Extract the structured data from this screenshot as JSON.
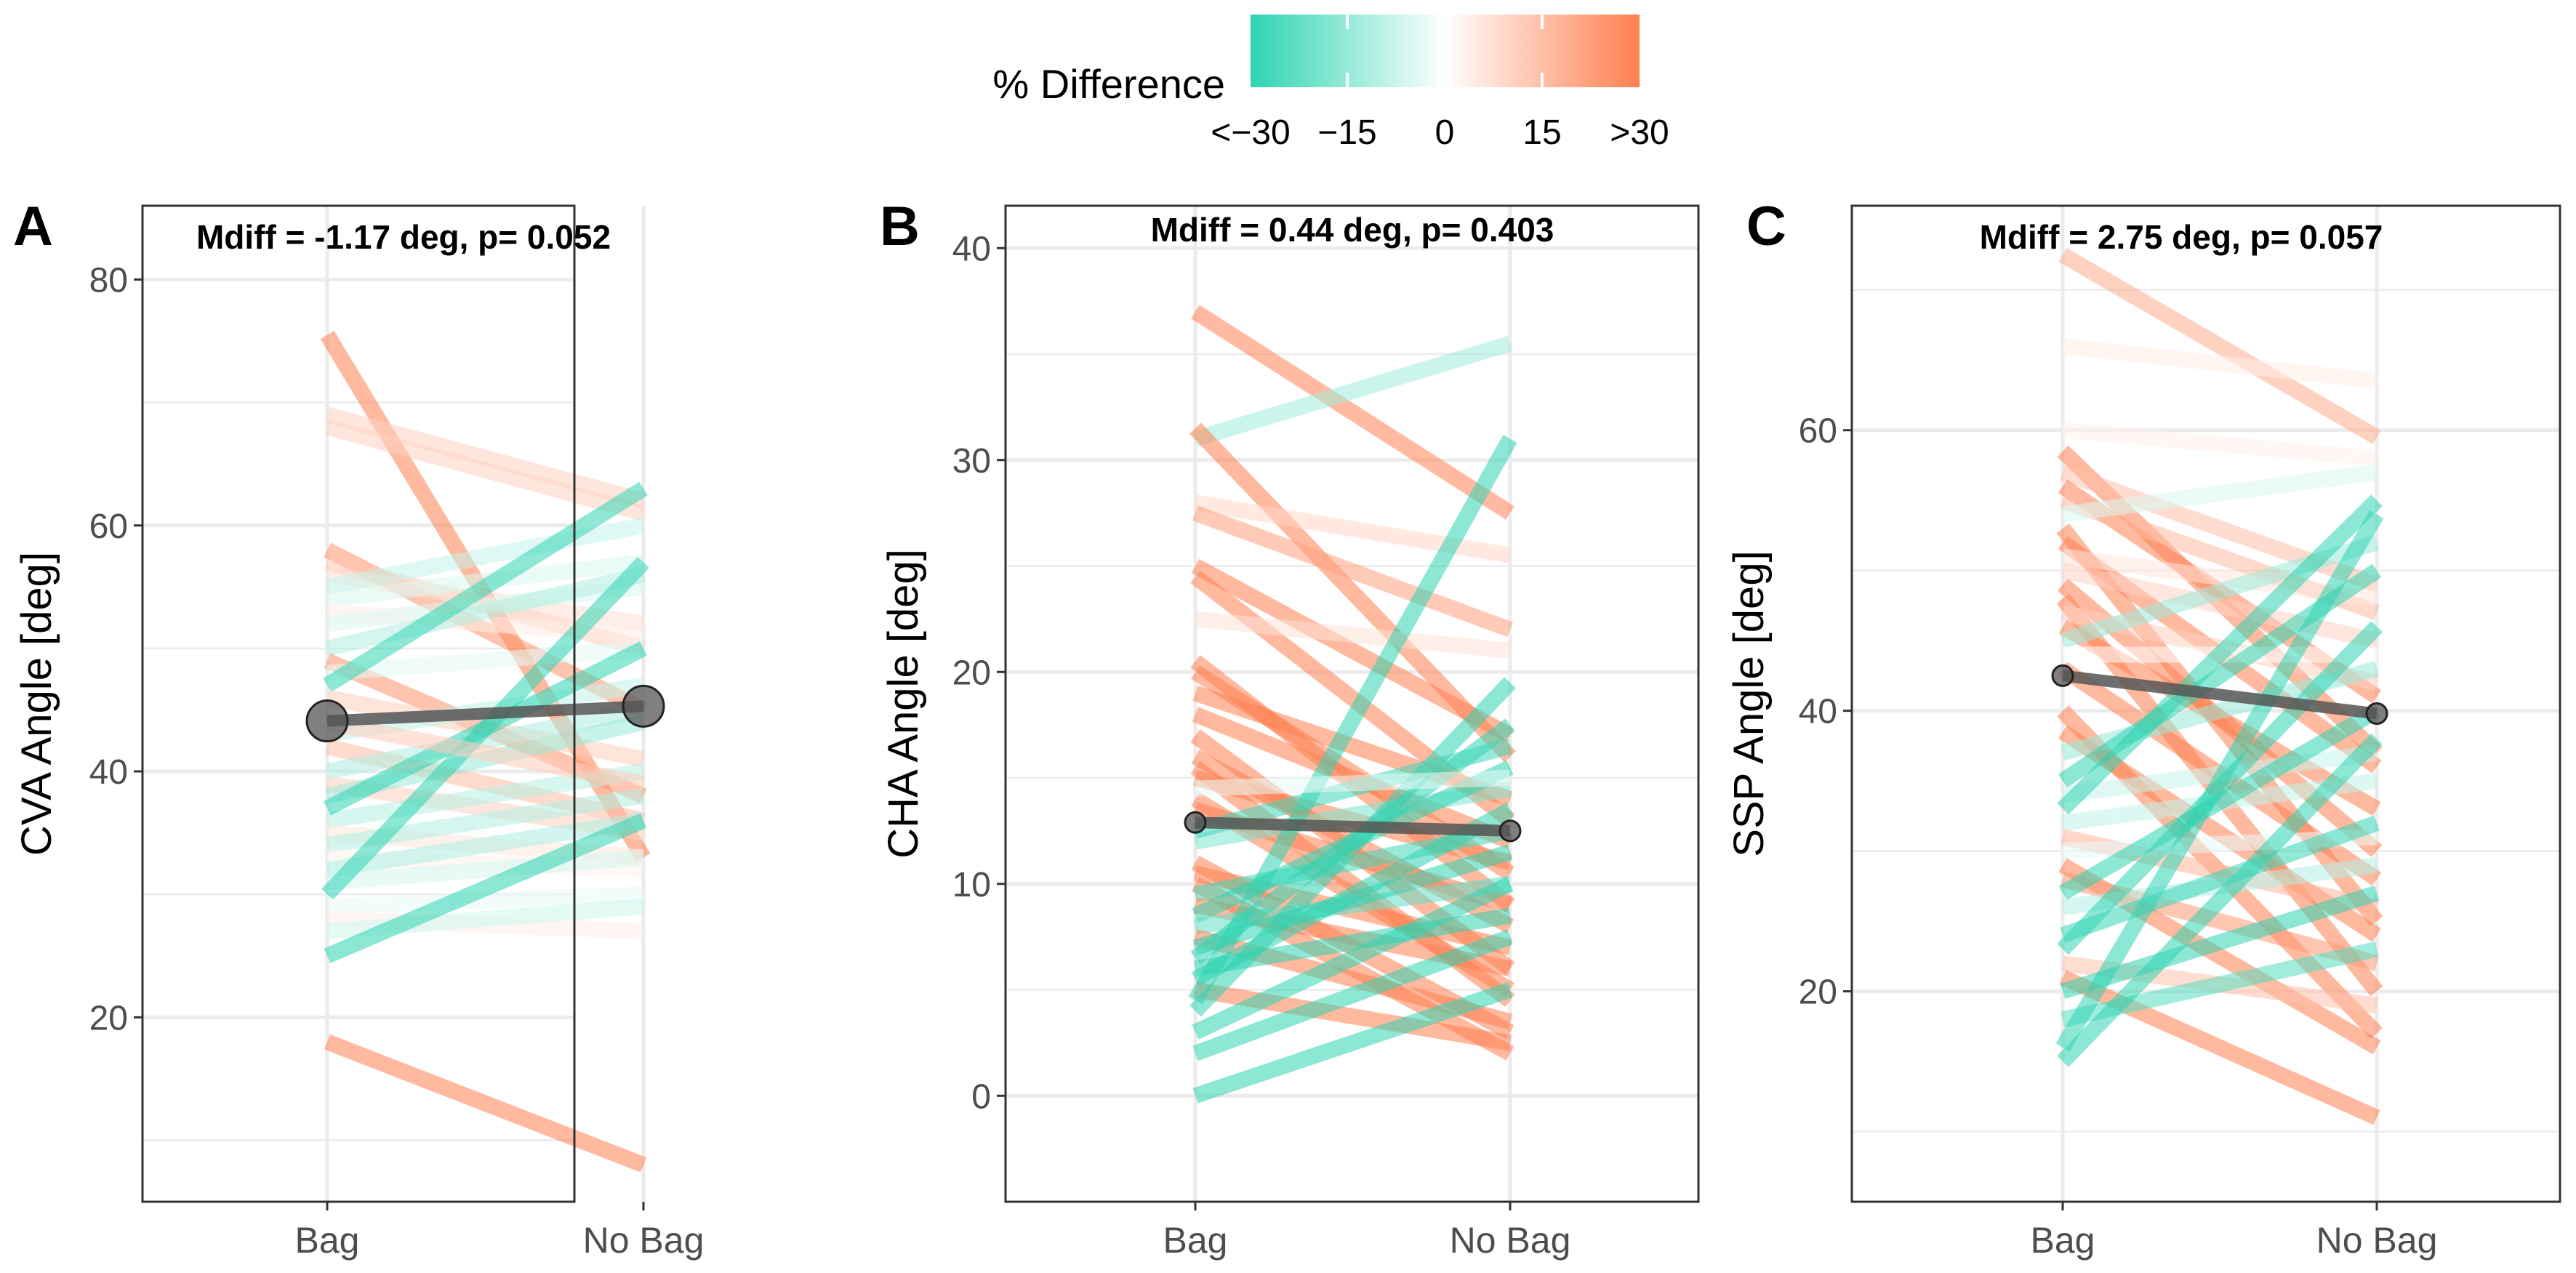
{
  "figure": {
    "legend": {
      "title": "% Difference",
      "tick_labels": [
        "<−30",
        "−15",
        "0",
        "15",
        ">30"
      ],
      "colors": {
        "low": "#2dd4b2",
        "mid": "#ffffff",
        "high": "#ff7f50"
      }
    },
    "mean_line_color": "#555555"
  },
  "chart_data": [
    {
      "type": "line",
      "panel": "A",
      "title": "Mdiff =  -1.17  deg, p= 0.052",
      "xlabel": "",
      "ylabel": "CVA Angle [deg]",
      "categories": [
        "Bag",
        "No Bag"
      ],
      "ylim": [
        5,
        86
      ],
      "yticks": [
        20,
        40,
        60,
        80
      ],
      "ytick_labels": [
        "20",
        "40",
        "60",
        "80"
      ],
      "grid": true,
      "mean_point_size": "large",
      "mean": {
        "name": "mean",
        "values": [
          44.1,
          45.3
        ]
      },
      "series": [
        {
          "name": "s1",
          "values": [
            75.5,
            33
          ]
        },
        {
          "name": "s2",
          "values": [
            69,
            62
          ]
        },
        {
          "name": "s3",
          "values": [
            68,
            61
          ]
        },
        {
          "name": "s4",
          "values": [
            58,
            45
          ]
        },
        {
          "name": "s5",
          "values": [
            57,
            50
          ]
        },
        {
          "name": "s6",
          "values": [
            56,
            52
          ]
        },
        {
          "name": "s7",
          "values": [
            55,
            60
          ]
        },
        {
          "name": "s8",
          "values": [
            54,
            57
          ]
        },
        {
          "name": "s9",
          "values": [
            53,
            51
          ]
        },
        {
          "name": "s10",
          "values": [
            52,
            55
          ]
        },
        {
          "name": "s11",
          "values": [
            50,
            56
          ]
        },
        {
          "name": "s12",
          "values": [
            49,
            38
          ]
        },
        {
          "name": "s13",
          "values": [
            48,
            50
          ]
        },
        {
          "name": "s14",
          "values": [
            47,
            63
          ]
        },
        {
          "name": "s15",
          "values": [
            46,
            41
          ]
        },
        {
          "name": "s16",
          "values": [
            43,
            47
          ]
        },
        {
          "name": "s17",
          "values": [
            42,
            36
          ]
        },
        {
          "name": "s18",
          "values": [
            40,
            45
          ]
        },
        {
          "name": "s19",
          "values": [
            39,
            35
          ]
        },
        {
          "name": "s20",
          "values": [
            38,
            44
          ]
        },
        {
          "name": "s21",
          "values": [
            36,
            40
          ]
        },
        {
          "name": "s22",
          "values": [
            35,
            33
          ]
        },
        {
          "name": "s23",
          "values": [
            34,
            38
          ]
        },
        {
          "name": "s24",
          "values": [
            33,
            32
          ]
        },
        {
          "name": "s25",
          "values": [
            32,
            36
          ]
        },
        {
          "name": "s26",
          "values": [
            31,
            33
          ]
        },
        {
          "name": "s27",
          "values": [
            30,
            57
          ]
        },
        {
          "name": "s28",
          "values": [
            29,
            30
          ]
        },
        {
          "name": "s29",
          "values": [
            28,
            27
          ]
        },
        {
          "name": "s30",
          "values": [
            27,
            29
          ]
        },
        {
          "name": "s31",
          "values": [
            25,
            36
          ]
        },
        {
          "name": "s32",
          "values": [
            37,
            50
          ]
        },
        {
          "name": "s33",
          "values": [
            44,
            39
          ]
        },
        {
          "name": "s34",
          "values": [
            18,
            8
          ]
        }
      ]
    },
    {
      "type": "line",
      "panel": "B",
      "title": "Mdiff =  0.44  deg, p= 0.403",
      "xlabel": "",
      "ylabel": "CHA Angle [deg]",
      "categories": [
        "Bag",
        "No Bag"
      ],
      "ylim": [
        -5,
        42
      ],
      "yticks": [
        0,
        10,
        20,
        30,
        40
      ],
      "ytick_labels": [
        "0",
        "10",
        "20",
        "30",
        "40"
      ],
      "grid": true,
      "mean_point_size": "small",
      "mean": {
        "name": "mean",
        "values": [
          12.9,
          12.5
        ]
      },
      "series": [
        {
          "name": "s1",
          "values": [
            37,
            27.5
          ]
        },
        {
          "name": "s2",
          "values": [
            31,
            35.5
          ]
        },
        {
          "name": "s3",
          "values": [
            31.5,
            16
          ]
        },
        {
          "name": "s4",
          "values": [
            28,
            25.5
          ]
        },
        {
          "name": "s5",
          "values": [
            27.5,
            22
          ]
        },
        {
          "name": "s6",
          "values": [
            25,
            17
          ]
        },
        {
          "name": "s7",
          "values": [
            24.5,
            13
          ]
        },
        {
          "name": "s8",
          "values": [
            22.5,
            21
          ]
        },
        {
          "name": "s9",
          "values": [
            20.5,
            9
          ]
        },
        {
          "name": "s10",
          "values": [
            20,
            10.5
          ]
        },
        {
          "name": "s11",
          "values": [
            19,
            14
          ]
        },
        {
          "name": "s12",
          "values": [
            18,
            12
          ]
        },
        {
          "name": "s13",
          "values": [
            17,
            6
          ]
        },
        {
          "name": "s14",
          "values": [
            16,
            8
          ]
        },
        {
          "name": "s15",
          "values": [
            15.5,
            4.5
          ]
        },
        {
          "name": "s16",
          "values": [
            15,
            11
          ]
        },
        {
          "name": "s17",
          "values": [
            14,
            5
          ]
        },
        {
          "name": "s18",
          "values": [
            13.5,
            9
          ]
        },
        {
          "name": "s19",
          "values": [
            12,
            14.5
          ]
        },
        {
          "name": "s20",
          "values": [
            11,
            3
          ]
        },
        {
          "name": "s21",
          "values": [
            10.5,
            7
          ]
        },
        {
          "name": "s22",
          "values": [
            10,
            2
          ]
        },
        {
          "name": "s23",
          "values": [
            9.5,
            12.5
          ]
        },
        {
          "name": "s24",
          "values": [
            9,
            6
          ]
        },
        {
          "name": "s25",
          "values": [
            8.5,
            15.5
          ]
        },
        {
          "name": "s26",
          "values": [
            8,
            10
          ]
        },
        {
          "name": "s27",
          "values": [
            7.5,
            3.5
          ]
        },
        {
          "name": "s28",
          "values": [
            7,
            11.5
          ]
        },
        {
          "name": "s29",
          "values": [
            6.5,
            17.5
          ]
        },
        {
          "name": "s30",
          "values": [
            6,
            8.5
          ]
        },
        {
          "name": "s31",
          "values": [
            5.5,
            13.5
          ]
        },
        {
          "name": "s32",
          "values": [
            5,
            2.5
          ]
        },
        {
          "name": "s33",
          "values": [
            4.5,
            31
          ]
        },
        {
          "name": "s34",
          "values": [
            4,
            19.5
          ]
        },
        {
          "name": "s35",
          "values": [
            3,
            10
          ]
        },
        {
          "name": "s36",
          "values": [
            2,
            7.5
          ]
        },
        {
          "name": "s37",
          "values": [
            0,
            5
          ]
        },
        {
          "name": "s38",
          "values": [
            12.5,
            16.5
          ]
        },
        {
          "name": "s39",
          "values": [
            14.5,
            15
          ]
        }
      ]
    },
    {
      "type": "line",
      "panel": "C",
      "title": "Mdiff =  2.75  deg, p= 0.057",
      "xlabel": "",
      "ylabel": "SSP Angle [deg]",
      "categories": [
        "Bag",
        "No Bag"
      ],
      "ylim": [
        5,
        76
      ],
      "yticks": [
        20,
        40,
        60
      ],
      "ytick_labels": [
        "20",
        "40",
        "60"
      ],
      "grid": true,
      "mean_point_size": "small",
      "mean": {
        "name": "mean",
        "values": [
          42.5,
          39.8
        ]
      },
      "series": [
        {
          "name": "s1",
          "values": [
            72.5,
            59.5
          ]
        },
        {
          "name": "s2",
          "values": [
            66,
            63.5
          ]
        },
        {
          "name": "s3",
          "values": [
            60,
            58
          ]
        },
        {
          "name": "s4",
          "values": [
            58.5,
            37
          ]
        },
        {
          "name": "s5",
          "values": [
            57,
            49
          ]
        },
        {
          "name": "s6",
          "values": [
            56,
            41
          ]
        },
        {
          "name": "s7",
          "values": [
            55,
            47
          ]
        },
        {
          "name": "s8",
          "values": [
            54,
            57
          ]
        },
        {
          "name": "s9",
          "values": [
            53,
            25
          ]
        },
        {
          "name": "s10",
          "values": [
            52,
            36
          ]
        },
        {
          "name": "s11",
          "values": [
            51,
            48
          ]
        },
        {
          "name": "s12",
          "values": [
            50,
            45
          ]
        },
        {
          "name": "s13",
          "values": [
            49,
            30
          ]
        },
        {
          "name": "s14",
          "values": [
            48,
            20
          ]
        },
        {
          "name": "s15",
          "values": [
            47,
            42
          ]
        },
        {
          "name": "s16",
          "values": [
            46,
            33
          ]
        },
        {
          "name": "s17",
          "values": [
            45,
            52
          ]
        },
        {
          "name": "s18",
          "values": [
            44,
            44
          ]
        },
        {
          "name": "s19",
          "values": [
            43,
            28
          ]
        },
        {
          "name": "s20",
          "values": [
            40,
            17
          ]
        },
        {
          "name": "s21",
          "values": [
            38.5,
            24
          ]
        },
        {
          "name": "s22",
          "values": [
            37,
            43
          ]
        },
        {
          "name": "s23",
          "values": [
            35,
            50
          ]
        },
        {
          "name": "s24",
          "values": [
            34,
            37
          ]
        },
        {
          "name": "s25",
          "values": [
            33,
            55
          ]
        },
        {
          "name": "s26",
          "values": [
            32,
            35
          ]
        },
        {
          "name": "s27",
          "values": [
            31,
            26
          ]
        },
        {
          "name": "s28",
          "values": [
            30,
            31
          ]
        },
        {
          "name": "s29",
          "values": [
            29,
            16
          ]
        },
        {
          "name": "s30",
          "values": [
            28,
            22
          ]
        },
        {
          "name": "s31",
          "values": [
            27,
            40
          ]
        },
        {
          "name": "s32",
          "values": [
            26,
            29
          ]
        },
        {
          "name": "s33",
          "values": [
            23,
            46
          ]
        },
        {
          "name": "s34",
          "values": [
            22,
            19
          ]
        },
        {
          "name": "s35",
          "values": [
            21,
            11
          ]
        },
        {
          "name": "s36",
          "values": [
            20,
            27
          ]
        },
        {
          "name": "s37",
          "values": [
            18,
            23
          ]
        },
        {
          "name": "s38",
          "values": [
            16,
            54
          ]
        },
        {
          "name": "s39",
          "values": [
            15,
            38
          ]
        },
        {
          "name": "s40",
          "values": [
            24,
            32
          ]
        }
      ]
    }
  ]
}
